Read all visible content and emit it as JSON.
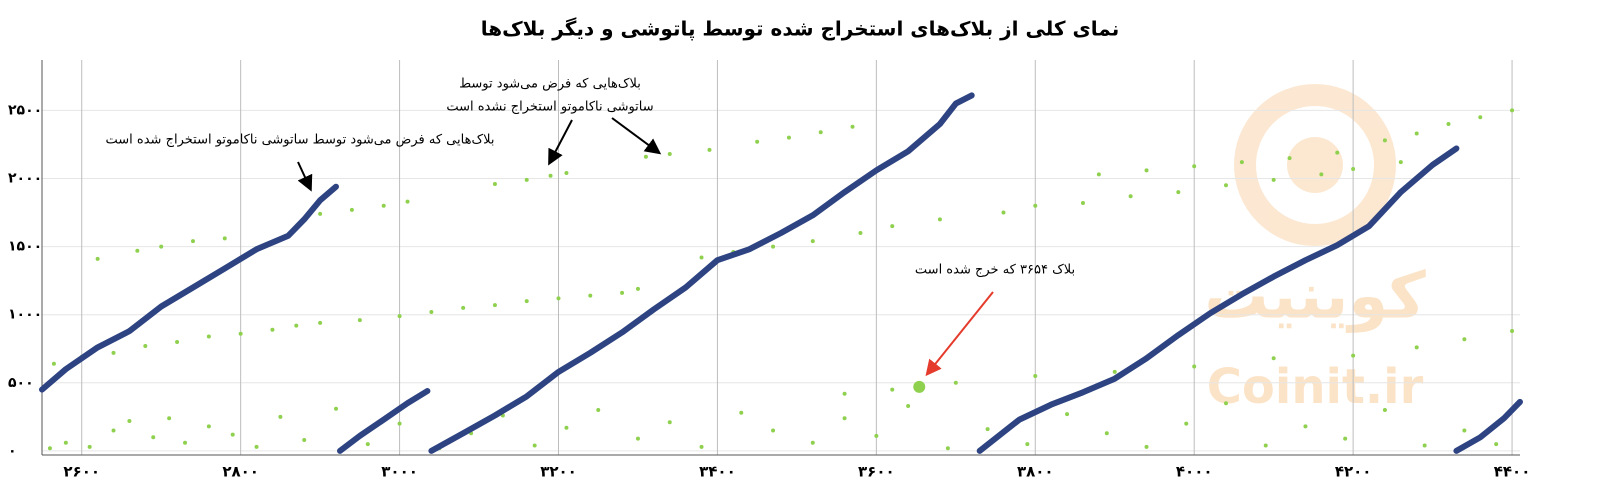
{
  "chart_data": {
    "type": "scatter",
    "title": "نمای کلی از بلاک‌های استخراج شده توسط پاتوشی و دیگر بلاک‌ها",
    "watermark": [
      "کوینیت",
      "Coinit.ir"
    ],
    "xlim": [
      2550,
      4410
    ],
    "ylim": [
      -30,
      2870
    ],
    "xticks": [
      {
        "value": 2600,
        "label": "۲۶۰۰"
      },
      {
        "value": 2800,
        "label": "۲۸۰۰"
      },
      {
        "value": 3000,
        "label": "۳۰۰۰"
      },
      {
        "value": 3200,
        "label": "۳۲۰۰"
      },
      {
        "value": 3400,
        "label": "۳۴۰۰"
      },
      {
        "value": 3600,
        "label": "۳۶۰۰"
      },
      {
        "value": 3800,
        "label": "۳۸۰۰"
      },
      {
        "value": 4000,
        "label": "۴۰۰۰"
      },
      {
        "value": 4200,
        "label": "۴۲۰۰"
      },
      {
        "value": 4400,
        "label": "۴۴۰۰"
      }
    ],
    "yticks": [
      {
        "value": 0,
        "label": "۰"
      },
      {
        "value": 500,
        "label": "۵۰۰"
      },
      {
        "value": 1000,
        "label": "۱۰۰۰"
      },
      {
        "value": 1500,
        "label": "۱۵۰۰"
      },
      {
        "value": 2000,
        "label": "۲۰۰۰"
      },
      {
        "value": 2500,
        "label": "۲۵۰۰"
      }
    ],
    "grid": true,
    "series": [
      {
        "mode": "markers",
        "marker_size": 2,
        "color": "#8fd14f",
        "x": [
          2565,
          2600,
          2640,
          2680,
          2720,
          2760,
          2800,
          2840,
          2870,
          2900,
          2950,
          3000,
          3040,
          3080,
          3120,
          3160,
          3200,
          3240,
          3280,
          3300,
          2620,
          2670,
          2700,
          2740,
          2780,
          2900,
          2940,
          2980,
          3010,
          3120,
          3160,
          3190,
          3210,
          3310,
          3340,
          3390,
          3450,
          3490,
          3530,
          3570,
          3380,
          3420,
          3470,
          3520,
          3580,
          3620,
          3680,
          3760,
          3800,
          3860,
          3920,
          3980,
          4040,
          4100,
          4160,
          4200,
          4260,
          3880,
          3940,
          4000,
          4060,
          4120,
          4180,
          4240,
          4280,
          4320,
          4360,
          4400,
          3560,
          3620,
          3700,
          3800,
          3900,
          4000,
          4100,
          4200,
          4280,
          4340,
          4400,
          2560,
          2580,
          2610,
          2640,
          2660,
          2690,
          2710,
          2730,
          2760,
          2790,
          2820,
          2850,
          2880,
          2920,
          2960,
          3000,
          3050,
          3090,
          3130,
          3170,
          3210,
          3250,
          3300,
          3340,
          3380,
          3430,
          3470,
          3520,
          3560,
          3600,
          3640,
          3690,
          3740,
          3790,
          3840,
          3890,
          3940,
          3990,
          4040,
          4090,
          4140,
          4190,
          4240,
          4290,
          4340,
          4380
        ],
        "values": [
          640,
          690,
          720,
          770,
          800,
          840,
          860,
          890,
          920,
          940,
          960,
          990,
          1020,
          1050,
          1070,
          1100,
          1120,
          1140,
          1160,
          1190,
          1410,
          1470,
          1500,
          1540,
          1560,
          1740,
          1770,
          1800,
          1830,
          1960,
          1990,
          2020,
          2040,
          2160,
          2180,
          2210,
          2270,
          2300,
          2340,
          2380,
          1420,
          1460,
          1500,
          1540,
          1600,
          1650,
          1700,
          1750,
          1800,
          1820,
          1870,
          1900,
          1950,
          1990,
          2030,
          2070,
          2120,
          2030,
          2060,
          2090,
          2120,
          2150,
          2190,
          2280,
          2330,
          2400,
          2450,
          2500,
          420,
          450,
          500,
          550,
          580,
          620,
          680,
          700,
          760,
          820,
          880,
          20,
          60,
          30,
          150,
          220,
          100,
          240,
          60,
          180,
          120,
          30,
          250,
          80,
          310,
          50,
          200,
          20,
          130,
          260,
          40,
          170,
          300,
          90,
          210,
          30,
          280,
          150,
          60,
          240,
          110,
          330,
          20,
          160,
          50,
          270,
          130,
          30,
          200,
          350,
          40,
          180,
          90,
          300,
          40,
          150,
          50
        ]
      },
      {
        "mode": "line",
        "line_width": 6,
        "color": "#2e4482",
        "x": [
          2550,
          2580,
          2620,
          2660,
          2700,
          2740,
          2780,
          2820,
          2860,
          2880,
          2900,
          2920,
          null,
          2925,
          2950,
          2980,
          3010,
          3035,
          null,
          3040,
          3080,
          3120,
          3160,
          3200,
          3240,
          3280,
          3320,
          3360,
          3400,
          3440,
          3480,
          3520,
          3560,
          3600,
          3640,
          3680,
          3700,
          3720,
          null,
          3730,
          3780,
          3820,
          3860,
          3900,
          3940,
          3980,
          4020,
          4060,
          4100,
          4140,
          4180,
          4220,
          4260,
          4300,
          4330,
          null,
          4330,
          4360,
          4390,
          4410
        ],
        "values": [
          450,
          600,
          760,
          880,
          1060,
          1200,
          1340,
          1480,
          1580,
          1700,
          1840,
          1940,
          null,
          0,
          110,
          230,
          350,
          440,
          null,
          0,
          130,
          260,
          400,
          580,
          720,
          870,
          1040,
          1200,
          1400,
          1480,
          1600,
          1730,
          1900,
          2060,
          2200,
          2400,
          2550,
          2610,
          null,
          0,
          230,
          340,
          430,
          530,
          680,
          850,
          1010,
          1150,
          1280,
          1400,
          1510,
          1650,
          1900,
          2100,
          2220,
          null,
          0,
          100,
          240,
          360
        ]
      },
      {
        "mode": "markers",
        "marker_size": 6,
        "color": "#8fd14f",
        "x": [
          3654
        ],
        "values": [
          470
        ]
      }
    ],
    "annotations": [
      {
        "lines": [
          "بلاک‌هایی که فرض می‌شود توسط ساتوشی ناکاموتو استخراج شده است"
        ]
      },
      {
        "lines": [
          "بلاک‌هایی که فرض می‌شود توسط",
          "ساتوشی ناکاموتو استخراج نشده است"
        ]
      },
      {
        "lines": [
          "بلاک ۳۶۵۴ که خرج شده است"
        ]
      }
    ]
  }
}
